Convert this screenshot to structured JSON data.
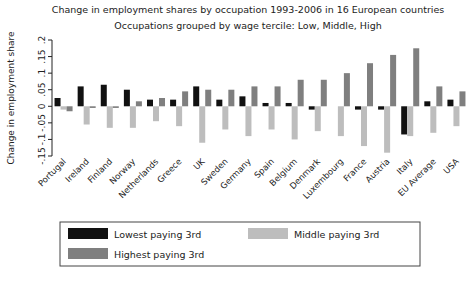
{
  "chart_data": {
    "type": "bar",
    "title": "Change in employment shares by occupation 1993-2006 in 16 European countries",
    "subtitle": "Occupations grouped by wage tercile: Low, Middle, High",
    "y_label": "Change in employment share",
    "categories": [
      "Portugal",
      "Ireland",
      "Finland",
      "Norway",
      "Netherlands",
      "Greece",
      "UK",
      "Sweden",
      "Germany",
      "Spain",
      "Belgium",
      "Denmark",
      "Luxembourg",
      "France",
      "Austria",
      "Italy",
      "EU Average",
      "USA"
    ],
    "series": [
      {
        "name": "Lowest paying 3rd",
        "color": "#111111",
        "values": [
          0.025,
          0.06,
          0.065,
          0.05,
          0.02,
          0.02,
          0.06,
          0.02,
          0.03,
          0.01,
          0.01,
          -0.01,
          0.0,
          -0.01,
          -0.01,
          -0.085,
          0.015,
          0.02
        ]
      },
      {
        "name": "Middle paying 3rd",
        "color": "#bdbdbd",
        "values": [
          -0.01,
          -0.055,
          -0.065,
          -0.065,
          -0.045,
          -0.06,
          -0.11,
          -0.07,
          -0.09,
          -0.07,
          -0.1,
          -0.075,
          -0.09,
          -0.12,
          -0.14,
          -0.09,
          -0.08,
          -0.06
        ]
      },
      {
        "name": "Highest paying 3rd",
        "color": "#7f7f7f",
        "values": [
          -0.015,
          -0.005,
          -0.005,
          0.015,
          0.025,
          0.045,
          0.05,
          0.05,
          0.06,
          0.06,
          0.08,
          0.08,
          0.1,
          0.13,
          0.155,
          0.175,
          0.06,
          0.045
        ]
      }
    ],
    "ylim": [
      -0.15,
      0.2
    ],
    "yticks": [
      {
        "value": -0.15,
        "label": "-.15"
      },
      {
        "value": -0.1,
        "label": "-.1"
      },
      {
        "value": -0.05,
        "label": "-.05"
      },
      0,
      {
        "value": 0.05,
        "label": ".05"
      },
      {
        "value": 0.1,
        "label": ".1"
      },
      {
        "value": 0.15,
        "label": ".15"
      },
      {
        "value": 0.2,
        "label": ".2"
      }
    ],
    "grid": false,
    "legend": "bottom"
  }
}
